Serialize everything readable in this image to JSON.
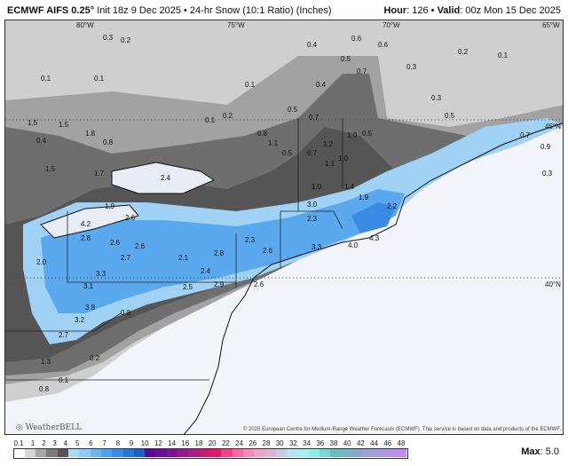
{
  "header": {
    "model": "ECMWF AIFS 0.25",
    "degree": "°",
    "description": "Init 18z 9 Dec 2025 • 24-hr Snow (10:1 Ratio) (Inches)",
    "hour_label": "Hour",
    "hour_value": ": 126 • ",
    "valid_label": "Valid",
    "valid_value": ": 00z Mon 15 Dec 2025"
  },
  "map": {
    "longitude_labels": [
      "80°W",
      "75°W",
      "70°W",
      "65°W"
    ],
    "latitude_labels": [
      "45°N",
      "40°N"
    ],
    "snow_labels": [
      "0.3",
      "0.2",
      "0.1",
      "0.1",
      "0.4",
      "0.6",
      "0.6",
      "0.5",
      "0.7",
      "0.4",
      "0.3",
      "0.2",
      "0.1",
      "0.5",
      "0.3",
      "0.3",
      "1.5",
      "0.4",
      "1.5",
      "1.8",
      "0.8",
      "0.1",
      "0.2",
      "0.1",
      "0.5",
      "0.7",
      "0.7",
      "0.5",
      "1.0",
      "1.0",
      "1.2",
      "0.8",
      "1.1",
      "0.5",
      "0.9",
      "0.7",
      "2.4",
      "1.5",
      "1.7",
      "1.1",
      "1.4",
      "1.0",
      "1.9",
      "1.9",
      "2.6",
      "3.0",
      "2.3",
      "2.2",
      "4.2",
      "2.8",
      "2.6",
      "2.7",
      "2.6",
      "2.1",
      "2.8",
      "2.3",
      "2.6",
      "3.3",
      "4.0",
      "4.3",
      "3.3",
      "3.1",
      "2.5",
      "2.9",
      "2.6",
      "2.4",
      "2.0",
      "3.8",
      "3.2",
      "2.7",
      "1.3",
      "0.8",
      "0.2",
      "0.8",
      "0.1"
    ],
    "credit": "© 2025 European Centre for Medium-Range Weather Forecasts (ECMWF). This service is based on data and products of the ECMWF.",
    "logo_text": "WeatherBELL"
  },
  "legend": {
    "tick_labels": [
      "0.1",
      "1",
      "2",
      "3",
      "4",
      "5",
      "6",
      "7",
      "8",
      "9",
      "10",
      "12",
      "14",
      "16",
      "18",
      "20",
      "22",
      "24",
      "26",
      "28",
      "30",
      "32",
      "34",
      "36",
      "38",
      "40",
      "42",
      "44",
      "46",
      "48"
    ],
    "colors": [
      "#ffffff",
      "#d6d6d6",
      "#a6a6a6",
      "#7a7a7a",
      "#555555",
      "#a9dbf7",
      "#8dcdf6",
      "#6db6f2",
      "#4fa2ee",
      "#3a8ae6",
      "#2676dc",
      "#1a60c6",
      "#5a0a90",
      "#6a1098",
      "#7e1494",
      "#931a8e",
      "#a81c86",
      "#c61c78",
      "#e0186e",
      "#f0408a",
      "#f76aa4",
      "#f58ab6",
      "#eda6c8",
      "#dcb6d8",
      "#c8ccea",
      "#b6e4f4",
      "#a8f0f2",
      "#8cf0e8",
      "#7ad8d4",
      "#6cbcc4",
      "#78b4c8",
      "#8aa8cc",
      "#9ca2d6",
      "#aa9ce0",
      "#b694e8",
      "#c28af0"
    ],
    "max_label": "Max",
    "max_value": ": 5.0"
  }
}
